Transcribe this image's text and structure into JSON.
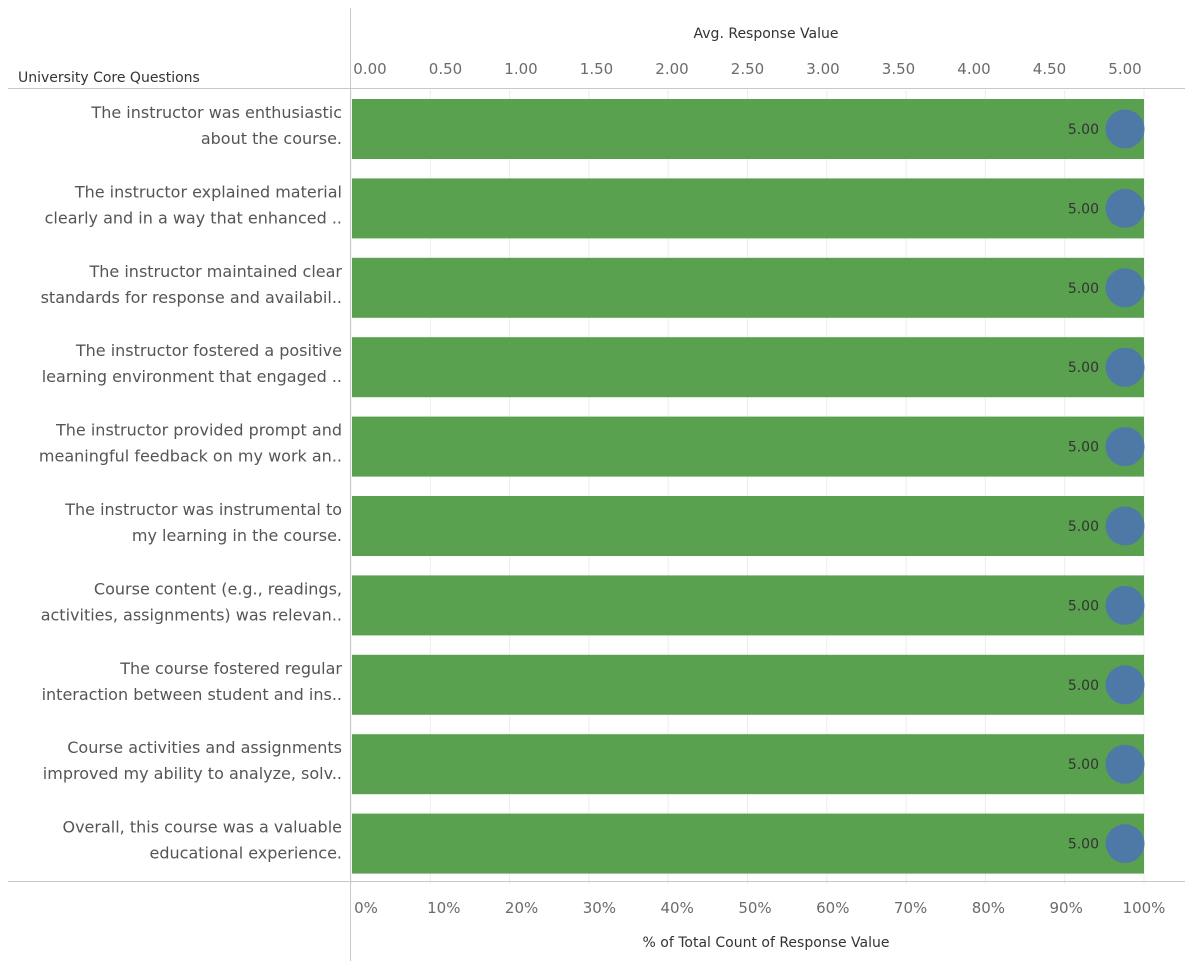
{
  "chart_data": {
    "type": "bar",
    "header": "University Core Questions",
    "top_axis": {
      "title": "Avg. Response Value",
      "range": [
        0,
        5
      ],
      "ticks": [
        "0.00",
        "0.50",
        "1.00",
        "1.50",
        "2.00",
        "2.50",
        "3.00",
        "3.50",
        "4.00",
        "4.50",
        "5.00"
      ]
    },
    "bottom_axis": {
      "title": "% of Total Count of Response Value",
      "range": [
        0,
        100
      ],
      "ticks": [
        "0%",
        "10%",
        "20%",
        "30%",
        "40%",
        "50%",
        "60%",
        "70%",
        "80%",
        "90%",
        "100%"
      ]
    },
    "categories": [
      [
        "The instructor was enthusiastic",
        "about the course."
      ],
      [
        "The instructor explained material",
        "clearly and in a way that enhanced .."
      ],
      [
        "The instructor maintained clear",
        "standards for response and availabil.."
      ],
      [
        "The instructor fostered a positive",
        "learning environment that engaged .."
      ],
      [
        "The instructor provided prompt and",
        "meaningful feedback on my work an.."
      ],
      [
        "The instructor was instrumental to",
        "my learning in the course."
      ],
      [
        "Course content (e.g., readings,",
        "activities, assignments) was relevan.."
      ],
      [
        "The course fostered regular",
        "interaction between student and ins.."
      ],
      [
        "Course activities and assignments",
        "improved my ability to analyze, solv.."
      ],
      [
        "Overall, this course was a valuable",
        "educational experience."
      ]
    ],
    "pct_values": [
      100,
      100,
      100,
      100,
      100,
      100,
      100,
      100,
      100,
      100
    ],
    "avg_values": [
      5,
      5,
      5,
      5,
      5,
      5,
      5,
      5,
      5,
      5
    ],
    "avg_labels": [
      "5.00",
      "5.00",
      "5.00",
      "5.00",
      "5.00",
      "5.00",
      "5.00",
      "5.00",
      "5.00",
      "5.00"
    ],
    "colors": {
      "bar": "#59a14f",
      "dot": "#4e79a7",
      "grid": "#ececec",
      "rule": "#c8c8c8"
    }
  }
}
